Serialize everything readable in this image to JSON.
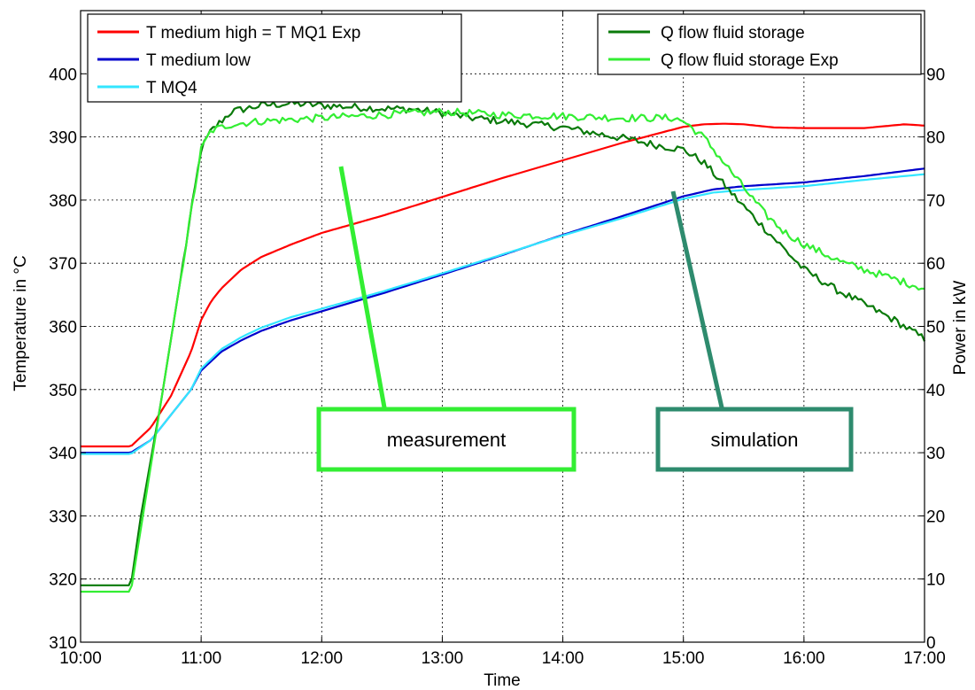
{
  "chart_data": {
    "type": "line",
    "title": "",
    "xlabel": "Time",
    "ylabel": "Temperature in °C",
    "ylabel_right": "Power in kW",
    "x_ticks": [
      "10:00",
      "11:00",
      "12:00",
      "13:00",
      "14:00",
      "15:00",
      "16:00",
      "17:00"
    ],
    "xlim": [
      "10:00",
      "17:00"
    ],
    "ylim": [
      310,
      410
    ],
    "ylim_right": [
      0,
      100
    ],
    "y_ticks": [
      310,
      320,
      330,
      340,
      350,
      360,
      370,
      380,
      390,
      400
    ],
    "y_ticks_right": [
      0,
      10,
      20,
      30,
      40,
      50,
      60,
      70,
      80,
      90
    ],
    "grid": true,
    "legend_left": {
      "placement": "top-left",
      "entries": [
        "T medium high = T MQ1 Exp",
        "T medium low",
        "T MQ4"
      ]
    },
    "legend_right": {
      "placement": "top-right",
      "entries": [
        "Q flow fluid storage",
        "Q flow fluid storage Exp"
      ]
    },
    "series": [
      {
        "name": "T medium high = T MQ1 Exp",
        "axis": "left",
        "color": "#ff0000",
        "noise": 0,
        "x": [
          "10:00",
          "10:25",
          "10:35",
          "10:45",
          "10:55",
          "11:00",
          "11:05",
          "11:10",
          "11:20",
          "11:30",
          "11:45",
          "12:00",
          "12:30",
          "13:00",
          "13:30",
          "14:00",
          "14:30",
          "15:00",
          "15:10",
          "15:20",
          "15:30",
          "15:45",
          "16:00",
          "16:30",
          "16:50",
          "17:00"
        ],
        "values": [
          341,
          341,
          344,
          349,
          356,
          361,
          364,
          366,
          369,
          371,
          373,
          374.8,
          377.5,
          380.5,
          383.5,
          386.3,
          389.1,
          391.6,
          392,
          392.1,
          392,
          391.5,
          391.4,
          391.4,
          392,
          391.8
        ]
      },
      {
        "name": "T medium low",
        "axis": "left",
        "color": "#0000cc",
        "noise": 0,
        "x": [
          "10:00",
          "10:25",
          "10:35",
          "10:45",
          "10:55",
          "11:00",
          "11:10",
          "11:20",
          "11:30",
          "11:45",
          "12:00",
          "12:30",
          "13:00",
          "13:30",
          "14:00",
          "14:30",
          "15:00",
          "15:15",
          "15:30",
          "16:00",
          "16:30",
          "17:00"
        ],
        "values": [
          340,
          340,
          342,
          346,
          350,
          353,
          356,
          357.8,
          359.3,
          361,
          362.4,
          365.2,
          368.2,
          371.3,
          374.5,
          377.5,
          380.6,
          381.7,
          382.2,
          382.8,
          383.8,
          385
        ]
      },
      {
        "name": "T MQ4",
        "axis": "left",
        "color": "#33e6ff",
        "noise": 0,
        "x": [
          "10:00",
          "10:25",
          "10:35",
          "10:45",
          "10:55",
          "11:00",
          "11:10",
          "11:20",
          "11:30",
          "11:45",
          "12:00",
          "12:30",
          "13:00",
          "13:30",
          "14:00",
          "14:30",
          "15:00",
          "15:15",
          "15:30",
          "16:00",
          "16:30",
          "17:00"
        ],
        "values": [
          339.8,
          339.8,
          342,
          346,
          350,
          353.3,
          356.4,
          358.3,
          359.8,
          361.5,
          362.8,
          365.5,
          368.4,
          371.4,
          374.4,
          377.2,
          380.2,
          381.2,
          381.6,
          382.2,
          383.2,
          384.1
        ]
      },
      {
        "name": "Q flow fluid storage",
        "axis": "right",
        "color": "#0a7a0a",
        "noise": 0.6,
        "x": [
          "10:00",
          "10:25",
          "10:30",
          "10:40",
          "10:50",
          "11:00",
          "11:05",
          "11:15",
          "11:30",
          "11:45",
          "12:00",
          "12:30",
          "12:45",
          "13:00",
          "13:15",
          "13:30",
          "14:00",
          "14:30",
          "14:45",
          "15:00",
          "15:10",
          "15:20",
          "15:30",
          "15:45",
          "16:00",
          "16:15",
          "16:30",
          "16:45",
          "17:00"
        ],
        "values": [
          9,
          9,
          20,
          38,
          58,
          78,
          81,
          84,
          85,
          85.3,
          85,
          84.5,
          84.4,
          83.8,
          83,
          82.5,
          81.5,
          79.8,
          78.8,
          78,
          76,
          72.5,
          69,
          64,
          59,
          56,
          53.5,
          51,
          48
        ]
      },
      {
        "name": "Q flow fluid storage Exp",
        "axis": "right",
        "color": "#33ee33",
        "noise": 0.6,
        "x": [
          "10:00",
          "10:25",
          "10:30",
          "10:40",
          "10:50",
          "11:00",
          "11:05",
          "11:15",
          "11:30",
          "12:00",
          "12:30",
          "13:00",
          "13:30",
          "14:00",
          "14:30",
          "14:55",
          "15:00",
          "15:10",
          "15:20",
          "15:30",
          "15:40",
          "15:50",
          "16:00",
          "16:20",
          "16:40",
          "17:00"
        ],
        "values": [
          8,
          8,
          18,
          38,
          58,
          78,
          81,
          82,
          82.5,
          83,
          83.5,
          84,
          83.5,
          83.3,
          83,
          83,
          82.5,
          80,
          76,
          72,
          68,
          65,
          63,
          60,
          58,
          56
        ]
      }
    ],
    "annotations": [
      {
        "label": "measurement",
        "color": "#33ee33"
      },
      {
        "label": "simulation",
        "color": "#2e8b6e"
      }
    ]
  }
}
